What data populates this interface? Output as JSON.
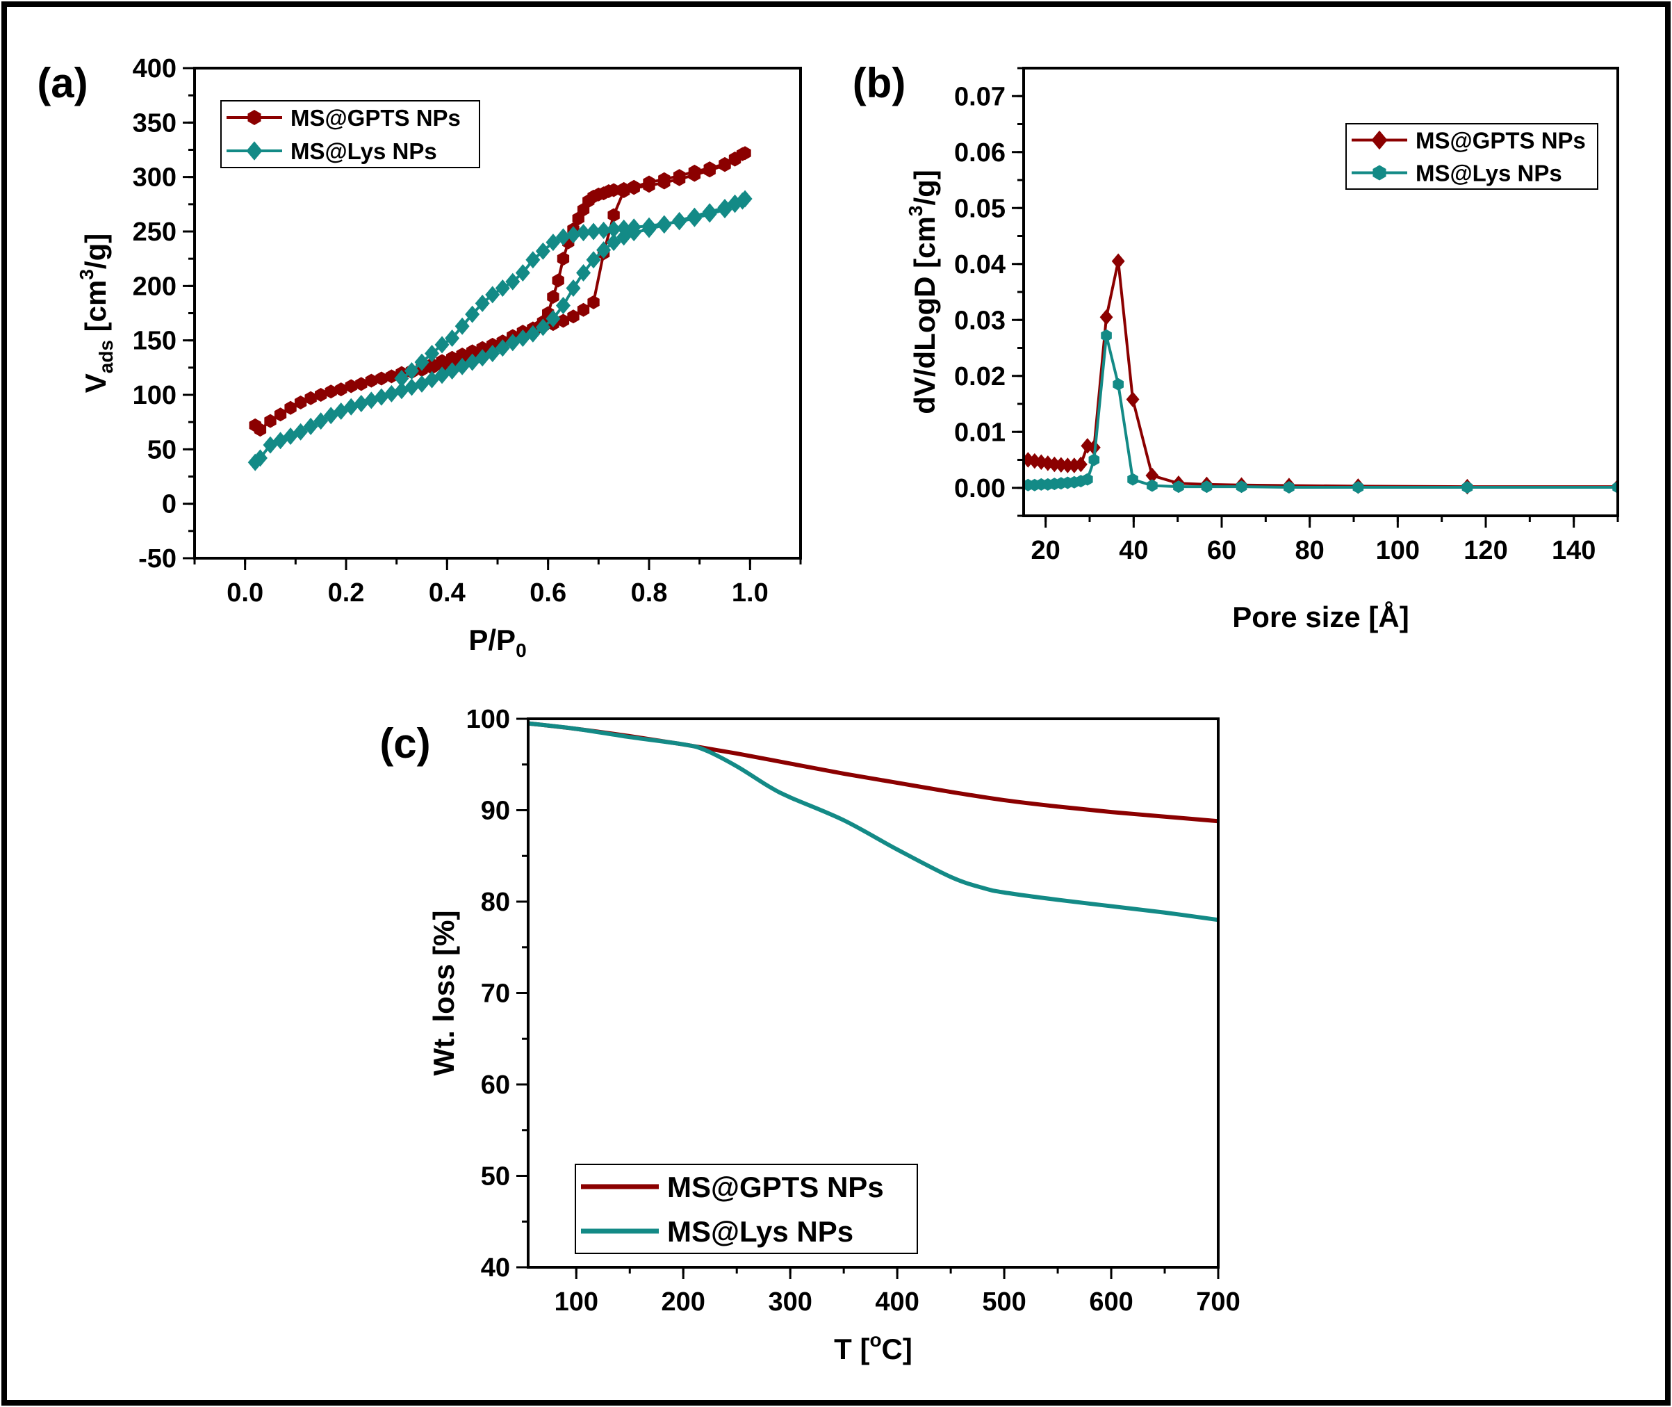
{
  "colors": {
    "gpts": "#8b0000",
    "lys": "#138a86"
  },
  "chart_data": [
    {
      "id": "a",
      "panel_label": "(a)",
      "type": "scatter",
      "xlabel": "P/P",
      "xlabel_sub": "0",
      "ylabel": "V",
      "ylabel_sub": "ads",
      "ylabel_unit": " [cm",
      "ylabel_sup": "3",
      "ylabel_unit2": "/g]",
      "xlim": [
        -0.1,
        1.1
      ],
      "ylim": [
        -50,
        400
      ],
      "xticks": [
        0.0,
        0.2,
        0.4,
        0.6,
        0.8,
        1.0
      ],
      "xtick_labels": [
        "0.0",
        "0.2",
        "0.4",
        "0.6",
        "0.8",
        "1.0"
      ],
      "yticks": [
        -50,
        0,
        50,
        100,
        150,
        200,
        250,
        300,
        350,
        400
      ],
      "ytick_labels": [
        "-50",
        "0",
        "50",
        "100",
        "150",
        "200",
        "250",
        "300",
        "350",
        "400"
      ],
      "legend_position": "top-left",
      "series": [
        {
          "name": "MS@GPTS NPs",
          "color_key": "gpts",
          "marker": "hexagon",
          "x": [
            0.02,
            0.03,
            0.05,
            0.07,
            0.09,
            0.11,
            0.13,
            0.15,
            0.17,
            0.19,
            0.21,
            0.23,
            0.25,
            0.27,
            0.29,
            0.31,
            0.33,
            0.35,
            0.37,
            0.39,
            0.41,
            0.43,
            0.45,
            0.47,
            0.49,
            0.51,
            0.53,
            0.55,
            0.57,
            0.59,
            0.61,
            0.63,
            0.65,
            0.67,
            0.69,
            0.71,
            0.73,
            0.75,
            0.77,
            0.8,
            0.83,
            0.86,
            0.89,
            0.92,
            0.95,
            0.97,
            0.99,
            0.985,
            0.97,
            0.95,
            0.92,
            0.89,
            0.86,
            0.83,
            0.8,
            0.77,
            0.75,
            0.73,
            0.72,
            0.71,
            0.7,
            0.69,
            0.68,
            0.67,
            0.66,
            0.65,
            0.64,
            0.63,
            0.62,
            0.61,
            0.6,
            0.59,
            0.58,
            0.57,
            0.55,
            0.53,
            0.51,
            0.49,
            0.47,
            0.45,
            0.43,
            0.41,
            0.39,
            0.37,
            0.35,
            0.33,
            0.31
          ],
          "y": [
            72,
            68,
            76,
            82,
            88,
            93,
            97,
            100,
            103,
            105,
            108,
            110,
            113,
            115,
            117,
            119,
            121,
            123,
            125,
            127,
            130,
            133,
            137,
            141,
            145,
            149,
            154,
            158,
            161,
            163,
            165,
            168,
            172,
            178,
            185,
            230,
            265,
            287,
            291,
            295,
            298,
            301,
            305,
            308,
            312,
            317,
            322,
            321,
            316,
            311,
            306,
            302,
            298,
            295,
            292,
            290,
            289,
            288,
            287,
            285,
            284,
            282,
            278,
            270,
            262,
            252,
            240,
            225,
            205,
            190,
            175,
            167,
            162,
            158,
            155,
            152,
            149,
            146,
            143,
            140,
            137,
            134,
            131,
            128,
            125,
            122,
            120
          ]
        },
        {
          "name": "MS@Lys NPs",
          "color_key": "lys",
          "marker": "diamond",
          "x": [
            0.02,
            0.03,
            0.05,
            0.07,
            0.09,
            0.11,
            0.13,
            0.15,
            0.17,
            0.19,
            0.21,
            0.23,
            0.25,
            0.27,
            0.29,
            0.31,
            0.33,
            0.35,
            0.37,
            0.39,
            0.41,
            0.43,
            0.45,
            0.47,
            0.49,
            0.51,
            0.53,
            0.55,
            0.57,
            0.59,
            0.61,
            0.63,
            0.65,
            0.67,
            0.69,
            0.71,
            0.73,
            0.75,
            0.77,
            0.8,
            0.83,
            0.86,
            0.89,
            0.92,
            0.95,
            0.97,
            0.99,
            0.985,
            0.97,
            0.95,
            0.92,
            0.89,
            0.86,
            0.83,
            0.8,
            0.77,
            0.75,
            0.73,
            0.71,
            0.69,
            0.67,
            0.65,
            0.63,
            0.61,
            0.59,
            0.57,
            0.55,
            0.53,
            0.51,
            0.49,
            0.47,
            0.45,
            0.43,
            0.41,
            0.39,
            0.37,
            0.35,
            0.33,
            0.31
          ],
          "y": [
            38,
            42,
            54,
            58,
            62,
            66,
            71,
            76,
            81,
            85,
            89,
            92,
            95,
            98,
            101,
            104,
            107,
            110,
            114,
            118,
            122,
            126,
            130,
            134,
            138,
            143,
            148,
            152,
            156,
            162,
            170,
            182,
            198,
            212,
            224,
            233,
            240,
            245,
            249,
            252,
            256,
            260,
            264,
            268,
            272,
            276,
            280,
            278,
            275,
            270,
            266,
            262,
            259,
            257,
            255,
            254,
            253,
            252,
            251,
            250,
            249,
            247,
            245,
            240,
            232,
            224,
            212,
            204,
            198,
            192,
            184,
            174,
            163,
            152,
            146,
            138,
            130,
            122,
            115
          ]
        }
      ]
    },
    {
      "id": "b",
      "panel_label": "(b)",
      "type": "line",
      "xlabel": "Pore size [Å]",
      "ylabel": "dV/dLogD [cm",
      "ylabel_sup": "3",
      "ylabel_unit2": "/g]",
      "xlim": [
        15,
        150
      ],
      "ylim": [
        -0.005,
        0.075
      ],
      "xticks": [
        20,
        40,
        60,
        80,
        100,
        120,
        140
      ],
      "xtick_labels": [
        "20",
        "40",
        "60",
        "80",
        "100",
        "120",
        "140"
      ],
      "yticks": [
        0.0,
        0.01,
        0.02,
        0.03,
        0.04,
        0.05,
        0.06,
        0.07
      ],
      "ytick_labels": [
        "0.00",
        "0.01",
        "0.02",
        "0.03",
        "0.04",
        "0.05",
        "0.06",
        "0.07"
      ],
      "legend_position": "top-right",
      "series": [
        {
          "name": "MS@GPTS NPs",
          "color_key": "gpts",
          "marker": "diamond",
          "x": [
            16,
            17.5,
            19,
            20.5,
            22,
            23.5,
            25,
            26.5,
            28,
            29.5,
            31,
            33.8,
            36.5,
            39.8,
            44.2,
            50.2,
            56.6,
            64.5,
            75.3,
            91.0,
            115.8,
            150
          ],
          "y": [
            0.005,
            0.0048,
            0.0046,
            0.0044,
            0.0042,
            0.0041,
            0.004,
            0.004,
            0.0042,
            0.0075,
            0.0072,
            0.0305,
            0.0405,
            0.0158,
            0.0022,
            0.0008,
            0.0006,
            0.0005,
            0.0004,
            0.0003,
            0.0002,
            0.0002
          ]
        },
        {
          "name": "MS@Lys NPs",
          "color_key": "lys",
          "marker": "hexagon",
          "x": [
            16,
            17.5,
            19,
            20.5,
            22,
            23.5,
            25,
            26.5,
            28,
            29.5,
            31,
            33.8,
            36.5,
            39.8,
            44.2,
            50.2,
            56.6,
            64.5,
            75.3,
            91.0,
            115.8,
            150
          ],
          "y": [
            0.0005,
            0.0005,
            0.0006,
            0.0006,
            0.0007,
            0.0008,
            0.0009,
            0.001,
            0.0012,
            0.0015,
            0.005,
            0.0272,
            0.0185,
            0.0015,
            0.0004,
            0.0002,
            0.0002,
            0.0002,
            0.0001,
            0.0001,
            0.0001,
            0.0001
          ]
        }
      ]
    },
    {
      "id": "c",
      "panel_label": "(c)",
      "type": "line",
      "xlabel": "T [",
      "xlabel_sup": "o",
      "xlabel_unit2": "C]",
      "ylabel": "Wt. loss [%]",
      "xlim": [
        55,
        700
      ],
      "ylim": [
        40,
        100
      ],
      "xticks": [
        100,
        200,
        300,
        400,
        500,
        600,
        700
      ],
      "xtick_labels": [
        "100",
        "200",
        "300",
        "400",
        "500",
        "600",
        "700"
      ],
      "yticks": [
        40,
        50,
        60,
        70,
        80,
        90,
        100
      ],
      "ytick_labels": [
        "40",
        "50",
        "60",
        "70",
        "80",
        "90",
        "100"
      ],
      "legend_position": "bottom-left",
      "series": [
        {
          "name": "MS@GPTS NPs",
          "color_key": "gpts",
          "x": [
            55,
            100,
            150,
            200,
            250,
            300,
            350,
            400,
            450,
            500,
            550,
            600,
            650,
            700
          ],
          "y": [
            99.5,
            98.9,
            98.1,
            97.2,
            96.2,
            95.1,
            94.0,
            93.0,
            92.0,
            91.1,
            90.4,
            89.8,
            89.3,
            88.8
          ],
          "smooth": true
        },
        {
          "name": "MS@Lys NPs",
          "color_key": "lys",
          "x": [
            55,
            100,
            150,
            200,
            220,
            250,
            280,
            300,
            350,
            400,
            450,
            480,
            500,
            550,
            600,
            650,
            700
          ],
          "y": [
            99.5,
            98.9,
            98.0,
            97.2,
            96.6,
            94.8,
            92.6,
            91.4,
            88.9,
            85.7,
            82.7,
            81.5,
            81.0,
            80.2,
            79.5,
            78.8,
            78.0
          ],
          "smooth": true
        }
      ]
    }
  ]
}
